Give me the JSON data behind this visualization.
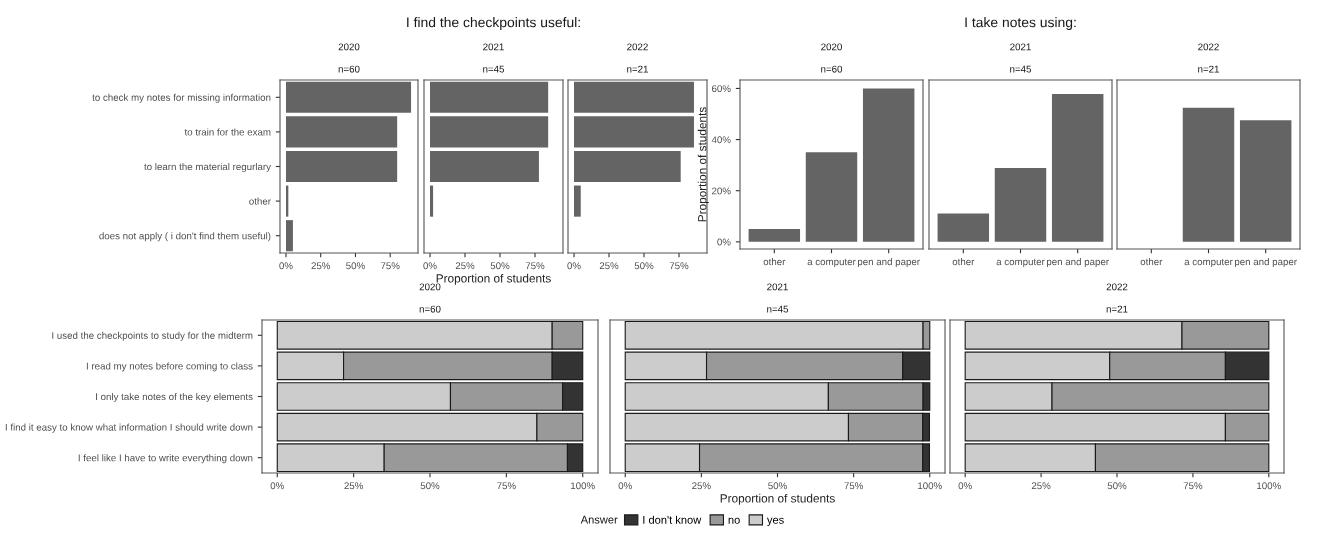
{
  "chart_data": [
    {
      "type": "bar",
      "orientation": "horizontal",
      "subtitle": "2020",
      "annotations": [
        "n=60"
      ],
      "categories": [
        "to check my notes for missing information",
        "to train for the exam",
        "to learn the material regurlary",
        "other",
        "does not apply ( i don't find them useful)"
      ],
      "series": [
        {
          "color": "#646464",
          "values": [
            90,
            80,
            80,
            1.7,
            5
          ]
        }
      ],
      "xlim": [
        -4.3,
        95
      ],
      "xticks": [
        {
          "value": 0,
          "label": "0%"
        },
        {
          "value": 25,
          "label": "25%"
        },
        {
          "value": 50,
          "label": "50%"
        },
        {
          "value": 75,
          "label": "75%"
        }
      ]
    },
    {
      "type": "bar",
      "orientation": "horizontal",
      "title": "I find the checkpoints useful:",
      "subtitle": "2021",
      "annotations": [
        "n=45"
      ],
      "xlabel": "Proportion of students",
      "categories": [
        null,
        null,
        null,
        null,
        null
      ],
      "series": [
        {
          "color": "#646464",
          "values": [
            84.4,
            84.4,
            77.8,
            2.2,
            0
          ]
        }
      ],
      "xlim": [
        -4.3,
        95
      ],
      "xticks": [
        {
          "value": 0,
          "label": "0%"
        },
        {
          "value": 25,
          "label": "25%"
        },
        {
          "value": 50,
          "label": "50%"
        },
        {
          "value": 75,
          "label": "75%"
        }
      ],
      "tick_labels": "x"
    },
    {
      "type": "bar",
      "orientation": "horizontal",
      "subtitle": "2022",
      "annotations": [
        "n=21"
      ],
      "categories": [
        null,
        null,
        null,
        null,
        null
      ],
      "series": [
        {
          "color": "#646464",
          "values": [
            85.7,
            85.7,
            76.2,
            4.8,
            0
          ]
        }
      ],
      "xlim": [
        -4.3,
        95
      ],
      "xticks": [
        {
          "value": 0,
          "label": "0%"
        },
        {
          "value": 25,
          "label": "25%"
        },
        {
          "value": 50,
          "label": "50%"
        },
        {
          "value": 75,
          "label": "75%"
        }
      ],
      "tick_labels": "x"
    },
    {
      "type": "bar",
      "subtitle": "2020",
      "annotations": [
        "n=60"
      ],
      "ylabel": "Proportion of students",
      "categories": [
        "other",
        "a computer",
        "pen and paper"
      ],
      "series": [
        {
          "color": "#646464",
          "values": [
            5,
            35,
            60
          ]
        }
      ],
      "ylim": [
        -2.8,
        63.3
      ],
      "yticks": [
        {
          "value": 0,
          "label": "0%"
        },
        {
          "value": 20,
          "label": "20%"
        },
        {
          "value": 40,
          "label": "40%"
        },
        {
          "value": 60,
          "label": "60%"
        }
      ]
    },
    {
      "type": "bar",
      "title": "I take notes using:",
      "subtitle": "2021",
      "annotations": [
        "n=45"
      ],
      "categories": [
        "other",
        "a computer",
        "pen and paper"
      ],
      "series": [
        {
          "color": "#646464",
          "values": [
            11.1,
            28.9,
            57.8
          ]
        }
      ],
      "ylim": [
        -2.8,
        63.3
      ],
      "tick_labels": "x"
    },
    {
      "type": "bar",
      "subtitle": "2022",
      "annotations": [
        "n=21"
      ],
      "categories": [
        "other",
        "a computer",
        "pen and paper"
      ],
      "series": [
        {
          "color": "#646464",
          "values": [
            0,
            52.4,
            47.6
          ]
        }
      ],
      "ylim": [
        -2.8,
        63.3
      ],
      "tick_labels": "x"
    },
    {
      "type": "bar",
      "orientation": "horizontal",
      "stacked": true,
      "subtitle": "2020",
      "annotations": [
        "n=60"
      ],
      "categories": [
        "I used the checkpoints to study for the midterm",
        "I read my notes before coming to class",
        "I only take notes of the key elements",
        "I find it easy to know what information I should write down",
        "I feel like I have to write everything down"
      ],
      "series": [
        {
          "color": "#cccccc",
          "values": [
            90,
            21.7,
            56.7,
            85,
            35
          ]
        },
        {
          "color": "#999999",
          "values": [
            10,
            68.3,
            36.7,
            15,
            60
          ]
        },
        {
          "color": "#333333",
          "values": [
            0,
            10,
            6.6,
            0,
            5
          ]
        }
      ],
      "xlim": [
        -5,
        105
      ],
      "xticks": [
        {
          "value": 0,
          "label": "0%"
        },
        {
          "value": 25,
          "label": "25%"
        },
        {
          "value": 50,
          "label": "50%"
        },
        {
          "value": 75,
          "label": "75%"
        },
        {
          "value": 100,
          "label": "100%"
        }
      ]
    },
    {
      "type": "bar",
      "orientation": "horizontal",
      "stacked": true,
      "subtitle": "2021",
      "annotations": [
        "n=45"
      ],
      "xlabel": "Proportion of students",
      "legend": "bottom",
      "legend_title": "Answer",
      "categories": [
        null,
        null,
        null,
        null,
        null
      ],
      "series": [
        {
          "name": "yes",
          "color": "#cccccc",
          "values": [
            97.8,
            26.7,
            66.7,
            73.3,
            24.4
          ]
        },
        {
          "name": "no",
          "color": "#999999",
          "values": [
            2.2,
            64.4,
            31.1,
            24.4,
            73.3
          ]
        },
        {
          "name": "I don't know",
          "color": "#333333",
          "values": [
            0,
            8.9,
            2.2,
            2.2,
            2.2
          ]
        }
      ],
      "xlim": [
        -5,
        105
      ],
      "xticks": [
        {
          "value": 0,
          "label": "0%"
        },
        {
          "value": 25,
          "label": "25%"
        },
        {
          "value": 50,
          "label": "50%"
        },
        {
          "value": 75,
          "label": "75%"
        },
        {
          "value": 100,
          "label": "100%"
        }
      ],
      "tick_labels": "x"
    },
    {
      "type": "bar",
      "orientation": "horizontal",
      "stacked": true,
      "subtitle": "2022",
      "annotations": [
        "n=21"
      ],
      "categories": [
        null,
        null,
        null,
        null,
        null
      ],
      "series": [
        {
          "color": "#cccccc",
          "values": [
            71.4,
            47.6,
            28.6,
            85.7,
            42.9
          ]
        },
        {
          "color": "#999999",
          "values": [
            28.6,
            38.1,
            71.4,
            14.3,
            57.1
          ]
        },
        {
          "color": "#333333",
          "values": [
            0,
            14.3,
            0,
            0,
            0
          ]
        }
      ],
      "xlim": [
        -5,
        105
      ],
      "xticks": [
        {
          "value": 0,
          "label": "0%"
        },
        {
          "value": 25,
          "label": "25%"
        },
        {
          "value": 50,
          "label": "50%"
        },
        {
          "value": 75,
          "label": "75%"
        },
        {
          "value": 100,
          "label": "100%"
        }
      ],
      "tick_labels": "x"
    }
  ]
}
